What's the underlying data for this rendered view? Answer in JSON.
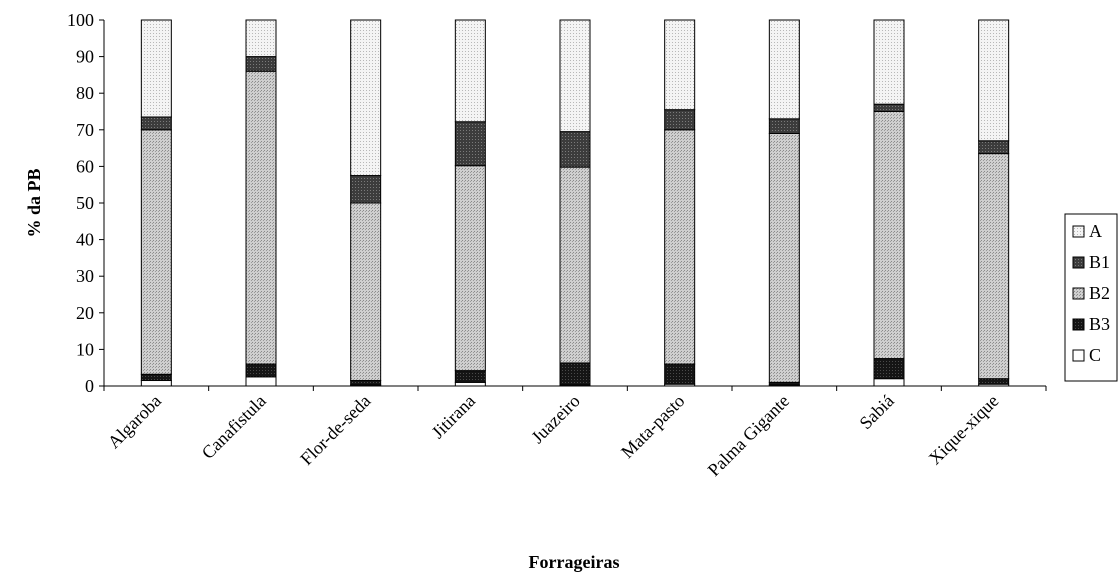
{
  "chart_data": {
    "type": "bar",
    "stacked": true,
    "title": "",
    "xlabel": "Forrageiras",
    "ylabel": "% da PB",
    "ylim": [
      0,
      100
    ],
    "yticks": [
      0,
      10,
      20,
      30,
      40,
      50,
      60,
      70,
      80,
      90,
      100
    ],
    "grid": false,
    "legend_position": "right",
    "categories": [
      "Algaroba",
      "Canafistula",
      "Flor-de-seda",
      "Jitirana",
      "Juazeiro",
      "Mata-pasto",
      "Palma Gigante",
      "Sabiá",
      "Xique-xique"
    ],
    "series": [
      {
        "name": "C",
        "color": "#ffffff",
        "pattern": "none",
        "values": [
          1.5,
          2.5,
          0.3,
          1.0,
          0.3,
          0.5,
          0.3,
          2.0,
          0.5
        ]
      },
      {
        "name": "B3",
        "color": "#1a1a1a",
        "pattern": "dark",
        "values": [
          1.7,
          3.5,
          1.2,
          3.2,
          6.0,
          5.5,
          0.7,
          5.5,
          1.5
        ]
      },
      {
        "name": "B2",
        "color": "#bdbdbd",
        "pattern": "medium",
        "values": [
          66.8,
          80.0,
          48.5,
          56.0,
          53.5,
          64.0,
          68.0,
          67.5,
          61.5
        ]
      },
      {
        "name": "B1",
        "color": "#3a3a3a",
        "pattern": "dark-medium",
        "values": [
          3.5,
          4.0,
          7.5,
          12.0,
          9.7,
          5.5,
          4.0,
          2.0,
          3.5
        ]
      },
      {
        "name": "A",
        "color": "#efefef",
        "pattern": "light",
        "values": [
          26.5,
          10.0,
          42.5,
          27.8,
          30.5,
          24.5,
          27.0,
          23.0,
          33.0
        ]
      }
    ],
    "legend_order": [
      "A",
      "B1",
      "B2",
      "B3",
      "C"
    ]
  }
}
